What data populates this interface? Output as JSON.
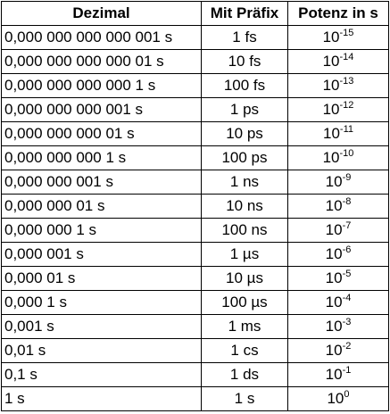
{
  "table": {
    "headers": {
      "dezimal": "Dezimal",
      "praefix": "Mit Präfix",
      "potenz": "Potenz in s"
    },
    "rows": [
      {
        "dezimal": "0,000 000 000 000 001 s",
        "praefix": "1 fs",
        "base": "10",
        "exp": "-15"
      },
      {
        "dezimal": "0,000 000 000 000 01 s",
        "praefix": "10 fs",
        "base": "10",
        "exp": "-14"
      },
      {
        "dezimal": "0,000 000 000 000 1 s",
        "praefix": "100 fs",
        "base": "10",
        "exp": "-13"
      },
      {
        "dezimal": "0,000 000 000 001 s",
        "praefix": "1 ps",
        "base": "10",
        "exp": "-12"
      },
      {
        "dezimal": "0,000 000 000 01 s",
        "praefix": "10 ps",
        "base": "10",
        "exp": "-11"
      },
      {
        "dezimal": "0,000 000 000 1 s",
        "praefix": "100 ps",
        "base": "10",
        "exp": "-10"
      },
      {
        "dezimal": "0,000 000 001 s",
        "praefix": "1 ns",
        "base": "10",
        "exp": "-9"
      },
      {
        "dezimal": "0,000 000 01 s",
        "praefix": "10 ns",
        "base": "10",
        "exp": "-8"
      },
      {
        "dezimal": "0,000 000 1 s",
        "praefix": "100 ns",
        "base": "10",
        "exp": "-7"
      },
      {
        "dezimal": "0,000 001 s",
        "praefix": "1 µs",
        "base": "10",
        "exp": "-6"
      },
      {
        "dezimal": "0,000 01 s",
        "praefix": "10 µs",
        "base": "10",
        "exp": "-5"
      },
      {
        "dezimal": "0,000 1 s",
        "praefix": "100 µs",
        "base": "10",
        "exp": "-4"
      },
      {
        "dezimal": "0,001 s",
        "praefix": "1 ms",
        "base": "10",
        "exp": "-3"
      },
      {
        "dezimal": "0,01 s",
        "praefix": "1 cs",
        "base": "10",
        "exp": "-2"
      },
      {
        "dezimal": "0,1 s",
        "praefix": "1 ds",
        "base": "10",
        "exp": "-1"
      },
      {
        "dezimal": "1 s",
        "praefix": "1 s",
        "base": "10",
        "exp": "0"
      }
    ]
  }
}
